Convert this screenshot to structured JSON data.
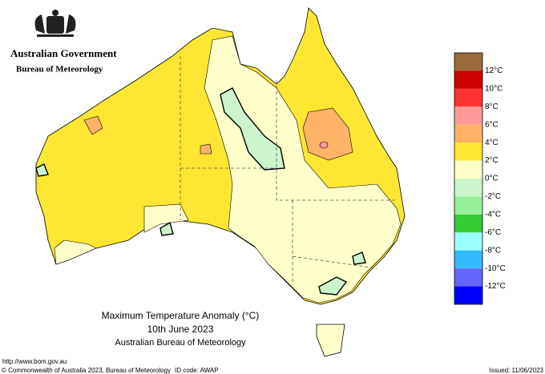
{
  "header": {
    "government": "Australian Government",
    "bureau": "Bureau of Meteorology"
  },
  "map": {
    "title": "Maximum Temperature Anomaly (°C)",
    "date": "10th June 2023",
    "source": "Australian Bureau of Meteorology"
  },
  "legend": {
    "colors": [
      "#9c6b3c",
      "#cc0000",
      "#ff3333",
      "#ff9999",
      "#ffb366",
      "#ffe633",
      "#ffffcc",
      "#ccf5cc",
      "#99ee99",
      "#33cc33",
      "#99ffff",
      "#33bbff",
      "#6666ff",
      "#0000ff"
    ],
    "labels": [
      "12°C",
      "10°C",
      "8°C",
      "6°C",
      "4°C",
      "2°C",
      "0°C",
      "-2°C",
      "-4°C",
      "-6°C",
      "-8°C",
      "-10°C",
      "-12°C"
    ]
  },
  "footer": {
    "url": "http://www.bom.gov.au",
    "copyright": "© Commonwealth of Australia 2023, Bureau of Meteorology",
    "id_code": "ID code: AWAP",
    "issued": "Issued: 11/06/2023"
  }
}
